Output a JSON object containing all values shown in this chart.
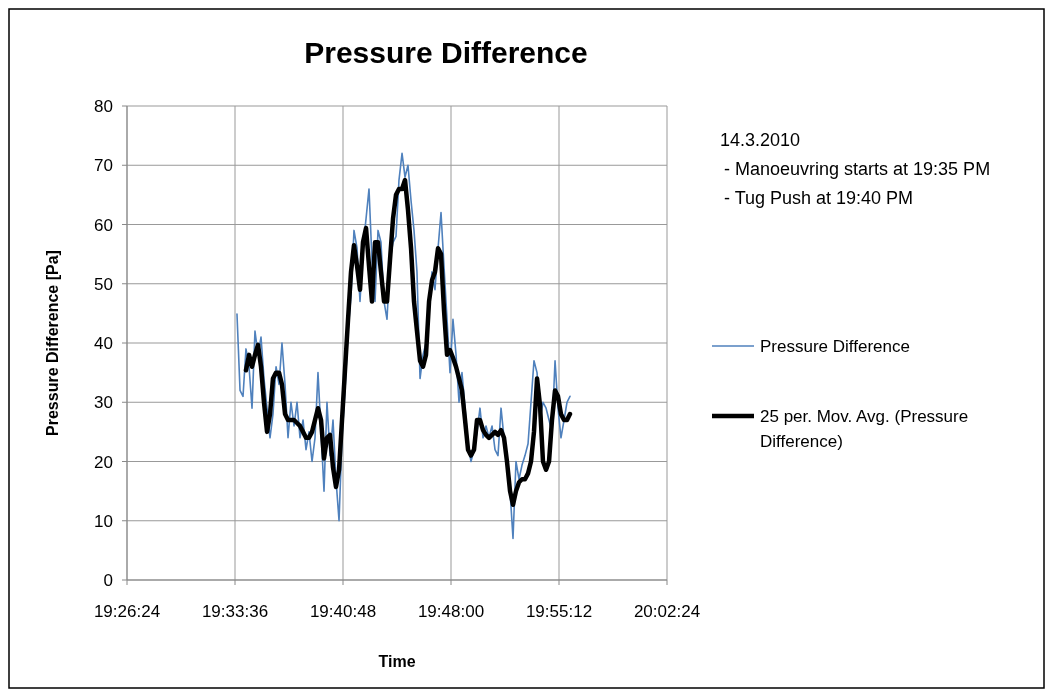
{
  "chart_data": {
    "type": "line",
    "title": "Pressure Difference",
    "xlabel": "Time",
    "ylabel": "Pressure Difference [Pa]",
    "annotations": [
      "14.3.2010",
      "- Manoeuvring starts at 19:35 PM",
      "- Tug Push at 19:40 PM"
    ],
    "xlim": [
      19.44,
      20.04
    ],
    "xticks": [
      {
        "value": 19.44,
        "label": "19:26:24"
      },
      {
        "value": 19.56,
        "label": "19:33:36"
      },
      {
        "value": 19.68,
        "label": "19:40:48"
      },
      {
        "value": 19.8,
        "label": "19:48:00"
      },
      {
        "value": 19.92,
        "label": "19:55:12"
      },
      {
        "value": 20.04,
        "label": "20:02:24"
      }
    ],
    "ylim": [
      0,
      80
    ],
    "yticks": [
      0,
      10,
      20,
      30,
      40,
      50,
      60,
      70,
      80
    ],
    "grid": true,
    "legend": "right",
    "line_style": "solid",
    "marker": "none",
    "series": [
      {
        "name": "Pressure Difference",
        "color": "#4f81bd",
        "x": [
          19.5622,
          19.5656,
          19.5689,
          19.5722,
          19.5756,
          19.5789,
          19.5822,
          19.5856,
          19.5889,
          19.5922,
          19.5956,
          19.5989,
          19.6022,
          19.6056,
          19.6089,
          19.6122,
          19.6156,
          19.6189,
          19.6222,
          19.6256,
          19.6289,
          19.6322,
          19.6356,
          19.6389,
          19.6422,
          19.6456,
          19.6489,
          19.6522,
          19.6556,
          19.6589,
          19.6622,
          19.6656,
          19.6689,
          19.6722,
          19.6756,
          19.6789,
          19.6822,
          19.6856,
          19.6889,
          19.6922,
          19.6956,
          19.6989,
          19.7022,
          19.7056,
          19.7089,
          19.7122,
          19.7156,
          19.7189,
          19.7222,
          19.7256,
          19.7289,
          19.7322,
          19.7356,
          19.7389,
          19.7422,
          19.7456,
          19.7489,
          19.7522,
          19.7556,
          19.7589,
          19.7622,
          19.7656,
          19.7689,
          19.7722,
          19.7756,
          19.7789,
          19.7822,
          19.7856,
          19.7889,
          19.7922,
          19.7956,
          19.7989,
          19.8022,
          19.8056,
          19.8089,
          19.8122,
          19.8156,
          19.8189,
          19.8222,
          19.8256,
          19.8289,
          19.8322,
          19.8356,
          19.8389,
          19.8422,
          19.8456,
          19.8489,
          19.8522,
          19.8556,
          19.8589,
          19.8622,
          19.8656,
          19.8689,
          19.8722,
          19.8756,
          19.8789,
          19.8822,
          19.8856,
          19.8889,
          19.8922,
          19.8956,
          19.8989,
          19.9022,
          19.9056,
          19.9089,
          19.9122,
          19.9156,
          19.9189,
          19.9222,
          19.9256,
          19.9289,
          19.9322
        ],
        "values": [
          44.9,
          32,
          31,
          39,
          36,
          29,
          42,
          38,
          41,
          34,
          29,
          24,
          28,
          36,
          33,
          40,
          33,
          24,
          30,
          26,
          30,
          24,
          27,
          22,
          25,
          20,
          24,
          35,
          25,
          15,
          30,
          21,
          27,
          17,
          10,
          24,
          32,
          42,
          48,
          59,
          56,
          47,
          56,
          61,
          66,
          54,
          47,
          59,
          57,
          47,
          44,
          54,
          57,
          58,
          67.5,
          72,
          68,
          70,
          64,
          59,
          52,
          34,
          38,
          40,
          47,
          52,
          49,
          56,
          62,
          53,
          44,
          35,
          44,
          38,
          30,
          35,
          29,
          23,
          20,
          22,
          25,
          29,
          24,
          26,
          24,
          26,
          22,
          21,
          29,
          24,
          20,
          15,
          7,
          20,
          17,
          19.4,
          21,
          23,
          30,
          37,
          35,
          27,
          30,
          29,
          27,
          25,
          37,
          29,
          24,
          27,
          30,
          31
        ]
      },
      {
        "name": "25 per. Mov. Avg. (Pressure Difference)",
        "color": "#000000",
        "x": [
          19.5722,
          19.5756,
          19.5789,
          19.5822,
          19.5856,
          19.5889,
          19.5922,
          19.5956,
          19.5989,
          19.6022,
          19.6056,
          19.6089,
          19.6122,
          19.6156,
          19.6189,
          19.6222,
          19.6256,
          19.6289,
          19.6322,
          19.6356,
          19.6389,
          19.6422,
          19.6456,
          19.6489,
          19.6522,
          19.6556,
          19.6589,
          19.6622,
          19.6656,
          19.6689,
          19.6722,
          19.6756,
          19.6789,
          19.6822,
          19.6856,
          19.6889,
          19.6922,
          19.6956,
          19.6989,
          19.7022,
          19.7056,
          19.7089,
          19.7122,
          19.7156,
          19.7189,
          19.7222,
          19.7256,
          19.7289,
          19.7322,
          19.7356,
          19.7389,
          19.7422,
          19.7456,
          19.7489,
          19.7522,
          19.7556,
          19.7589,
          19.7622,
          19.7656,
          19.7689,
          19.7722,
          19.7756,
          19.7789,
          19.7822,
          19.7856,
          19.7889,
          19.7922,
          19.7956,
          19.7989,
          19.8022,
          19.8056,
          19.8089,
          19.8122,
          19.8156,
          19.8189,
          19.8222,
          19.8256,
          19.8289,
          19.8322,
          19.8356,
          19.8389,
          19.8422,
          19.8456,
          19.8489,
          19.8522,
          19.8556,
          19.8589,
          19.8622,
          19.8656,
          19.8689,
          19.8722,
          19.8756,
          19.8789,
          19.8822,
          19.8856,
          19.8889,
          19.8922,
          19.8956,
          19.8989,
          19.9022,
          19.9056,
          19.9089,
          19.9122,
          19.9156,
          19.9189,
          19.9222,
          19.9256,
          19.9289,
          19.9322
        ],
        "values": [
          35.4,
          38,
          36,
          38,
          39.7,
          36,
          30,
          25,
          28,
          34,
          35,
          35,
          33,
          28,
          27,
          27,
          27,
          26.5,
          26,
          25,
          24,
          24,
          25,
          27,
          29,
          27,
          20.5,
          24,
          24.5,
          19,
          15.7,
          18.6,
          27,
          35.4,
          44,
          52,
          56.5,
          53,
          49,
          57,
          59.4,
          53,
          47,
          57,
          57,
          52,
          47,
          47,
          54,
          61,
          65,
          66,
          66,
          67.5,
          62.5,
          56,
          47,
          42,
          37,
          36,
          38,
          47,
          50.6,
          52,
          56,
          55,
          45.6,
          38,
          38.8,
          37.5,
          36,
          34,
          32,
          27,
          22,
          21,
          22,
          27,
          27,
          25.3,
          24.5,
          24,
          24.5,
          25,
          24.5,
          25.3,
          24,
          20,
          15,
          12.7,
          15,
          16.5,
          17,
          17,
          18,
          20,
          25,
          34,
          29.5,
          20,
          18.6,
          20,
          27,
          32,
          31,
          28,
          27,
          27,
          28
        ]
      }
    ]
  }
}
